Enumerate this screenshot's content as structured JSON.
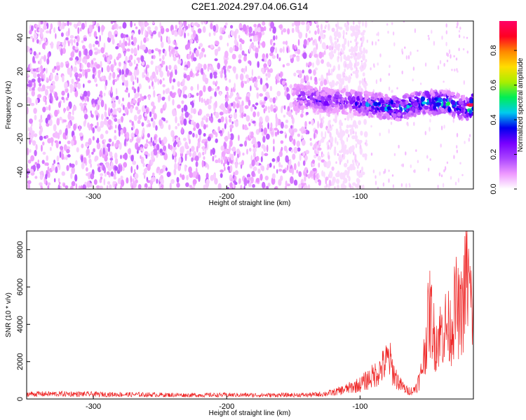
{
  "figure": {
    "title": "C2E1.2024.297.04.06.G14"
  },
  "chart_data": [
    {
      "type": "heatmap",
      "description_ref": "spectrogram",
      "xlabel": "Height of straight line (km)",
      "ylabel": "Frequency (Hz)",
      "xlim": [
        -350,
        -15
      ],
      "ylim": [
        -50,
        50
      ],
      "xticks": [
        -300,
        -200,
        -100
      ],
      "yticks": [
        -40,
        -20,
        0,
        20,
        40
      ],
      "grid": false,
      "colorbar": {
        "label": "Normalized spectral amplitude",
        "range": [
          0.0,
          0.97
        ],
        "ticks": [
          0.0,
          0.2,
          0.4,
          0.6,
          0.8
        ],
        "tick_labels": [
          "0.0",
          "0.2",
          "0.4",
          "0.6",
          "0.8"
        ],
        "colors": [
          "#ffffff",
          "#ee99ff",
          "#aa44ff",
          "#7700ff",
          "#0000ee",
          "#00ccee",
          "#00ee55",
          "#aaee00",
          "#ffdd00",
          "#ff8800",
          "#ff0022",
          "#ff0066"
        ]
      },
      "signal_band": {
        "x": [
          -150,
          -130,
          -110,
          -90,
          -70,
          -50,
          -35,
          -20,
          -15
        ],
        "center_frequency": [
          5,
          3,
          2,
          0,
          -2,
          2,
          1,
          -2,
          0
        ],
        "peak_amplitude": [
          0.25,
          0.35,
          0.3,
          0.5,
          0.55,
          0.5,
          0.6,
          0.45,
          0.95
        ]
      }
    },
    {
      "type": "line",
      "xlabel": "Height of straight line (km)",
      "ylabel": "SNR (10 * v/v)",
      "xlim": [
        -350,
        -15
      ],
      "ylim": [
        0,
        9000
      ],
      "xticks": [
        -300,
        -200,
        -100
      ],
      "yticks": [
        0,
        2000,
        4000,
        6000,
        8000
      ],
      "color": "#ee2222",
      "grid": false,
      "series": [
        {
          "x": [
            -350,
            -320,
            -290,
            -260,
            -230,
            -200,
            -170,
            -140,
            -130,
            -120,
            -110,
            -100,
            -95,
            -90,
            -85,
            -80,
            -78,
            -75,
            -70,
            -65,
            -60,
            -55,
            -52,
            -50,
            -48,
            -46,
            -44,
            -40,
            -36,
            -32,
            -28,
            -25,
            -22,
            -20,
            -18,
            -16,
            -15
          ],
          "y": [
            350,
            350,
            320,
            300,
            270,
            280,
            270,
            280,
            320,
            450,
            700,
            1000,
            1300,
            1600,
            2000,
            2600,
            2800,
            1800,
            1000,
            600,
            550,
            1400,
            3000,
            4500,
            6000,
            5500,
            4000,
            4500,
            5000,
            4800,
            6500,
            5500,
            7000,
            9000,
            7500,
            6000,
            7000
          ]
        }
      ]
    }
  ]
}
